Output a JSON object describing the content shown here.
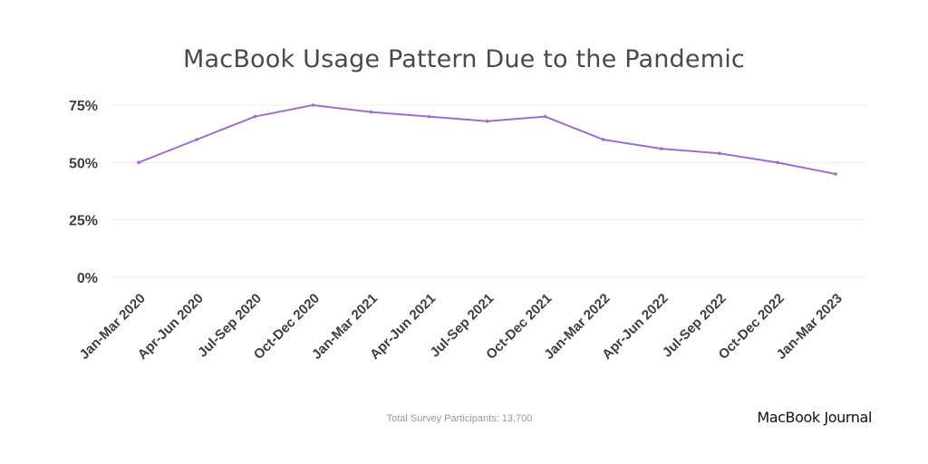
{
  "chart_data": {
    "type": "line",
    "title": "MacBook Usage Pattern Due to the Pandemic",
    "xlabel": "",
    "ylabel": "",
    "categories": [
      "Jan-Mar 2020",
      "Apr-Jun 2020",
      "Jul-Sep 2020",
      "Oct-Dec 2020",
      "Jan-Mar 2021",
      "Apr-Jun 2021",
      "Jul-Sep 2021",
      "Oct-Dec 2021",
      "Jan-Mar 2022",
      "Apr-Jun 2022",
      "Jul-Sep 2022",
      "Oct-Dec 2022",
      "Jan-Mar 2023"
    ],
    "series": [
      {
        "values": [
          50,
          60,
          70,
          75,
          72,
          70,
          68,
          70,
          60,
          56,
          54,
          50,
          45
        ],
        "color": "#9b6fcf"
      }
    ],
    "y_ticks": [
      "0%",
      "25%",
      "50%",
      "75%"
    ],
    "y_tick_values": [
      0,
      25,
      50,
      75
    ],
    "ylim": [
      0,
      75
    ],
    "grid": true,
    "legend": "none"
  },
  "footnote": "Total Survey Participants: 13,700",
  "brand": "MacBook Journal"
}
